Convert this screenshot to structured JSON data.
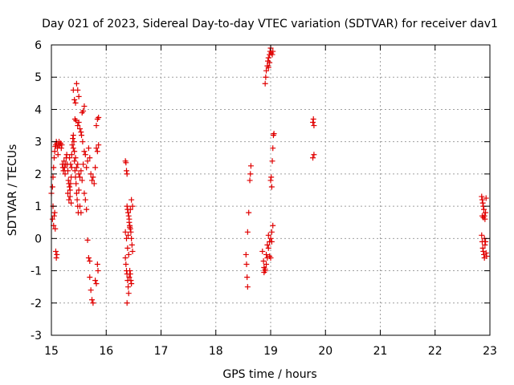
{
  "chart_data": {
    "type": "scatter",
    "title": "Day 021 of 2023, Sidereal Day-to-day VTEC variation (SDTVAR) for receiver dav1",
    "xlabel": "GPS time / hours",
    "ylabel": "SDTVAR / TECUs",
    "xlim": [
      15,
      23
    ],
    "ylim": [
      -3,
      6
    ],
    "x_ticks": [
      15,
      16,
      17,
      18,
      19,
      20,
      21,
      22,
      23
    ],
    "y_ticks": [
      -3,
      -2,
      -1,
      0,
      1,
      2,
      3,
      4,
      5,
      6
    ],
    "grid": true,
    "marker": "plus",
    "marker_color": "#e00000",
    "series": [
      {
        "name": "dav1",
        "points": [
          [
            15.0,
            1.4
          ],
          [
            15.02,
            1.6
          ],
          [
            15.03,
            1.9
          ],
          [
            15.04,
            2.2
          ],
          [
            15.05,
            2.5
          ],
          [
            15.06,
            2.7
          ],
          [
            15.07,
            2.85
          ],
          [
            15.08,
            2.9
          ],
          [
            15.09,
            3.0
          ],
          [
            15.1,
            2.95
          ],
          [
            15.11,
            2.8
          ],
          [
            15.12,
            2.6
          ],
          [
            15.13,
            2.9
          ],
          [
            15.14,
            3.0
          ],
          [
            15.15,
            2.9
          ],
          [
            15.17,
            2.95
          ],
          [
            15.18,
            2.8
          ],
          [
            15.19,
            2.9
          ],
          [
            15.2,
            2.3
          ],
          [
            15.21,
            2.2
          ],
          [
            15.22,
            2.1
          ],
          [
            15.23,
            2.4
          ],
          [
            15.24,
            2.2
          ],
          [
            15.25,
            2.0
          ],
          [
            15.26,
            2.3
          ],
          [
            15.27,
            2.5
          ],
          [
            15.28,
            2.6
          ],
          [
            15.29,
            2.3
          ],
          [
            15.3,
            2.1
          ],
          [
            15.31,
            1.8
          ],
          [
            15.32,
            1.7
          ],
          [
            15.33,
            1.6
          ],
          [
            15.34,
            1.5
          ],
          [
            15.35,
            1.7
          ],
          [
            15.36,
            1.9
          ],
          [
            15.37,
            2.2
          ],
          [
            15.38,
            2.9
          ],
          [
            15.39,
            3.1
          ],
          [
            15.4,
            3.2
          ],
          [
            15.41,
            3.0
          ],
          [
            15.42,
            2.4
          ],
          [
            15.43,
            2.1
          ],
          [
            15.44,
            1.9
          ],
          [
            15.45,
            1.7
          ],
          [
            15.46,
            1.4
          ],
          [
            15.47,
            1.2
          ],
          [
            15.48,
            1.0
          ],
          [
            15.49,
            0.8
          ],
          [
            15.3,
            1.4
          ],
          [
            15.32,
            1.2
          ],
          [
            15.34,
            1.3
          ],
          [
            15.36,
            1.1
          ],
          [
            15.33,
            2.5
          ],
          [
            15.35,
            2.3
          ],
          [
            15.37,
            2.6
          ],
          [
            15.4,
            2.8
          ],
          [
            15.42,
            2.7
          ],
          [
            15.44,
            2.5
          ],
          [
            15.46,
            2.2
          ],
          [
            15.48,
            2.3
          ],
          [
            15.04,
            0.4
          ],
          [
            15.05,
            0.7
          ],
          [
            15.06,
            0.8
          ],
          [
            15.07,
            0.3
          ],
          [
            15.08,
            -0.4
          ],
          [
            15.09,
            -0.6
          ],
          [
            15.1,
            -0.5
          ],
          [
            15.02,
            0.6
          ],
          [
            15.03,
            1.0
          ],
          [
            15.4,
            4.6
          ],
          [
            15.42,
            4.3
          ],
          [
            15.44,
            4.2
          ],
          [
            15.46,
            4.8
          ],
          [
            15.48,
            4.6
          ],
          [
            15.5,
            4.4
          ],
          [
            15.5,
            3.6
          ],
          [
            15.48,
            3.5
          ],
          [
            15.45,
            3.65
          ],
          [
            15.43,
            3.7
          ],
          [
            15.52,
            3.4
          ],
          [
            15.54,
            3.3
          ],
          [
            15.56,
            3.9
          ],
          [
            15.58,
            3.95
          ],
          [
            15.6,
            4.1
          ],
          [
            15.55,
            3.2
          ],
          [
            15.57,
            3.0
          ],
          [
            15.6,
            2.7
          ],
          [
            15.62,
            2.6
          ],
          [
            15.64,
            2.2
          ],
          [
            15.66,
            2.4
          ],
          [
            15.68,
            2.8
          ],
          [
            15.7,
            2.5
          ],
          [
            15.72,
            2.0
          ],
          [
            15.74,
            1.8
          ],
          [
            15.76,
            1.9
          ],
          [
            15.78,
            1.7
          ],
          [
            15.8,
            2.2
          ],
          [
            15.82,
            2.8
          ],
          [
            15.84,
            2.7
          ],
          [
            15.86,
            2.9
          ],
          [
            15.82,
            3.5
          ],
          [
            15.84,
            3.7
          ],
          [
            15.86,
            3.75
          ],
          [
            15.5,
            2.0
          ],
          [
            15.52,
            1.9
          ],
          [
            15.54,
            2.1
          ],
          [
            15.56,
            1.8
          ],
          [
            15.58,
            2.3
          ],
          [
            15.5,
            1.5
          ],
          [
            15.52,
            1.0
          ],
          [
            15.54,
            0.8
          ],
          [
            15.6,
            1.4
          ],
          [
            15.62,
            1.2
          ],
          [
            15.64,
            0.9
          ],
          [
            15.66,
            -0.05
          ],
          [
            15.68,
            -0.6
          ],
          [
            15.7,
            -0.7
          ],
          [
            15.7,
            -1.2
          ],
          [
            15.72,
            -1.6
          ],
          [
            15.74,
            -1.9
          ],
          [
            15.76,
            -2.0
          ],
          [
            15.8,
            -1.3
          ],
          [
            15.82,
            -1.4
          ],
          [
            15.84,
            -0.8
          ],
          [
            15.85,
            -1.0
          ],
          [
            16.35,
            2.4
          ],
          [
            16.36,
            2.35
          ],
          [
            16.37,
            2.1
          ],
          [
            16.38,
            2.0
          ],
          [
            16.38,
            1.0
          ],
          [
            16.39,
            0.9
          ],
          [
            16.4,
            0.8
          ],
          [
            16.41,
            0.7
          ],
          [
            16.42,
            0.5
          ],
          [
            16.43,
            0.4
          ],
          [
            16.44,
            0.3
          ],
          [
            16.45,
            0.2
          ],
          [
            16.46,
            0.0
          ],
          [
            16.47,
            -0.2
          ],
          [
            16.48,
            -0.4
          ],
          [
            16.35,
            -0.6
          ],
          [
            16.36,
            -0.8
          ],
          [
            16.37,
            -1.0
          ],
          [
            16.38,
            -1.1
          ],
          [
            16.39,
            -1.3
          ],
          [
            16.4,
            -1.5
          ],
          [
            16.41,
            -1.7
          ],
          [
            16.42,
            -1.2
          ],
          [
            16.43,
            -1.0
          ],
          [
            16.44,
            -1.1
          ],
          [
            16.45,
            -1.3
          ],
          [
            16.46,
            -1.4
          ],
          [
            16.38,
            -2.0
          ],
          [
            16.4,
            0.1
          ],
          [
            16.42,
            0.6
          ],
          [
            16.44,
            0.9
          ],
          [
            16.46,
            1.2
          ],
          [
            16.48,
            1.0
          ],
          [
            16.35,
            0.2
          ],
          [
            16.37,
            0.0
          ],
          [
            16.39,
            -0.3
          ],
          [
            16.41,
            -0.5
          ],
          [
            16.43,
            0.35
          ],
          [
            18.55,
            -0.5
          ],
          [
            18.56,
            -0.8
          ],
          [
            18.57,
            -1.2
          ],
          [
            18.58,
            -1.5
          ],
          [
            18.58,
            0.2
          ],
          [
            18.6,
            0.8
          ],
          [
            18.62,
            1.8
          ],
          [
            18.63,
            2.0
          ],
          [
            18.64,
            2.25
          ],
          [
            18.85,
            -0.4
          ],
          [
            18.87,
            -0.7
          ],
          [
            18.88,
            -0.9
          ],
          [
            18.9,
            -1.0
          ],
          [
            18.92,
            -0.8
          ],
          [
            18.94,
            -0.6
          ],
          [
            18.96,
            -0.3
          ],
          [
            18.98,
            -0.1
          ],
          [
            19.0,
            0.0
          ],
          [
            19.02,
            0.2
          ],
          [
            19.04,
            0.4
          ],
          [
            18.88,
            -1.05
          ],
          [
            18.9,
            -0.95
          ],
          [
            18.92,
            -0.5
          ],
          [
            18.94,
            -0.2
          ],
          [
            18.96,
            0.1
          ],
          [
            18.98,
            -0.55
          ],
          [
            19.0,
            -0.6
          ],
          [
            19.02,
            -0.1
          ],
          [
            18.9,
            4.8
          ],
          [
            18.91,
            5.0
          ],
          [
            18.92,
            5.2
          ],
          [
            18.94,
            5.35
          ],
          [
            18.95,
            5.5
          ],
          [
            18.96,
            5.6
          ],
          [
            18.98,
            5.7
          ],
          [
            18.99,
            5.8
          ],
          [
            19.0,
            5.9
          ],
          [
            19.01,
            5.75
          ],
          [
            19.03,
            5.7
          ],
          [
            19.04,
            5.8
          ],
          [
            18.96,
            5.3
          ],
          [
            18.98,
            5.45
          ],
          [
            19.0,
            1.8
          ],
          [
            19.01,
            1.9
          ],
          [
            19.02,
            1.6
          ],
          [
            19.03,
            2.4
          ],
          [
            19.04,
            2.8
          ],
          [
            19.05,
            3.2
          ],
          [
            19.06,
            3.25
          ],
          [
            19.77,
            3.6
          ],
          [
            19.78,
            3.7
          ],
          [
            19.79,
            3.5
          ],
          [
            19.77,
            2.5
          ],
          [
            19.79,
            2.6
          ],
          [
            22.85,
            1.3
          ],
          [
            22.86,
            1.2
          ],
          [
            22.87,
            1.1
          ],
          [
            22.88,
            1.0
          ],
          [
            22.89,
            0.9
          ],
          [
            22.9,
            0.7
          ],
          [
            22.91,
            0.6
          ],
          [
            22.92,
            0.8
          ],
          [
            22.93,
            1.25
          ],
          [
            22.86,
            0.7
          ],
          [
            22.88,
            0.65
          ],
          [
            22.85,
            0.1
          ],
          [
            22.86,
            -0.1
          ],
          [
            22.87,
            -0.3
          ],
          [
            22.88,
            -0.4
          ],
          [
            22.89,
            -0.5
          ],
          [
            22.9,
            -0.6
          ],
          [
            22.91,
            -0.2
          ],
          [
            22.92,
            -0.1
          ],
          [
            22.93,
            -0.45
          ],
          [
            22.94,
            -0.55
          ],
          [
            22.9,
            0.0
          ]
        ]
      }
    ]
  }
}
